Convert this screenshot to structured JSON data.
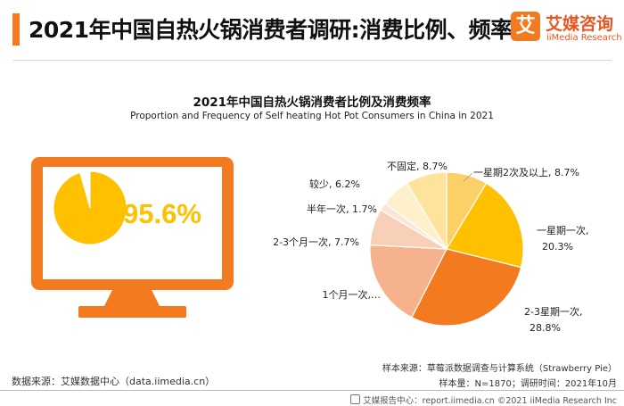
{
  "header": {
    "title": "2021年中国自热火锅消费者调研:消费比例、频率",
    "logo_char": "艾",
    "logo_cn": "艾媒咨询",
    "logo_en": "iiMedia Research"
  },
  "chart_title": "2021年中国自热火锅消费者比例及消费频率",
  "chart_subtitle": "Proportion and Frequency of Self heating Hot Pot Consumers in China in 2021",
  "colors": {
    "accent": "#f47a20",
    "monitor": "#f47a20",
    "consumer_share_fill": "#ffc000",
    "non_consumer_fill": "#ffffff"
  },
  "chart_data": [
    {
      "type": "pie",
      "values": [
        95.6,
        4.4
      ],
      "colors": [
        "#ffc000",
        "#ffffff"
      ],
      "label": "95.6%"
    },
    {
      "type": "pie",
      "slices": [
        {
          "label": "一星期2次及以上, 8.7%",
          "value": 8.7,
          "color": "#fbd066"
        },
        {
          "label": "一星期一次, 20.3%",
          "value": 20.3,
          "color": "#ffc000"
        },
        {
          "label": "2-3星期一次, 28.8%",
          "value": 28.8,
          "color": "#f47a20"
        },
        {
          "label": "1个月一次,…",
          "value": 18.4,
          "color": "#f5b28c"
        },
        {
          "label": "2-3个月一次, 7.7%",
          "value": 7.7,
          "color": "#f8cfb7"
        },
        {
          "label": "半年一次, 1.7%",
          "value": 1.7,
          "color": "#fbe5d8"
        },
        {
          "label": "较少, 6.2%",
          "value": 6.2,
          "color": "#fff0cc"
        },
        {
          "label": "不固定, 8.7%",
          "value": 8.7,
          "color": "#fde39b"
        }
      ]
    }
  ],
  "footer": {
    "source_left": "数据来源：艾媒数据中心（data.iimedia.cn）",
    "sample_source": "样本来源：草莓派数据调查与计算系统（Strawberry Pie）",
    "sample_info": "样本量：N=1870；调研时间：2021年10月",
    "copyright": "艾媒报告中心：report.iimedia.cn   ©2021  iiMedia Research  Inc"
  }
}
